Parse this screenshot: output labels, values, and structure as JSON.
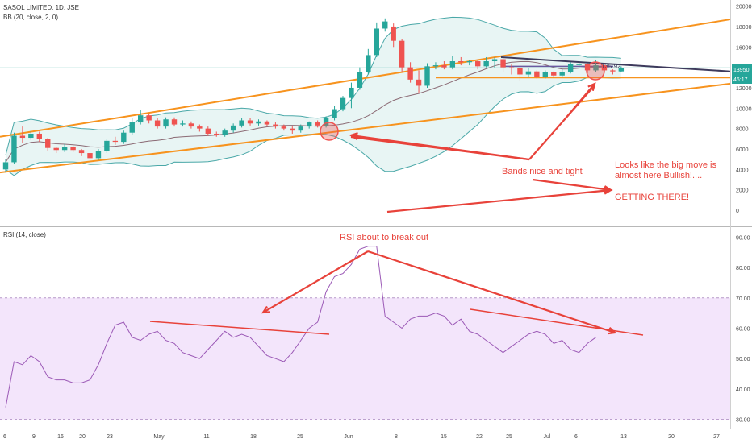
{
  "header": {
    "symbol_line": "SASOL LIMITED, 1D, JSE",
    "bb_line": "BB (20, close, 2, 0)",
    "rsi_line": "RSI (14, close)"
  },
  "price_labels": {
    "last_price": "13950",
    "countdown": "46:17",
    "line_value": "135.92"
  },
  "annotations": {
    "rsi_break": "RSI about to break out",
    "bands_tight": "Bands nice and tight",
    "bullish_1": "Looks like the big move is",
    "bullish_2": "almost here Bullish!....",
    "getting_there": "GETTING THERE!"
  },
  "colors": {
    "up": "#26a69a",
    "down": "#ef5350",
    "channel": "#f7931e",
    "bands": "#4aa8a8",
    "band_fill": "#e6f4f3",
    "ma": "#8b6a74",
    "rsi": "#9b59b6",
    "rsi_band": "#f3e5fb",
    "annotation": "#e8423a",
    "trend_dark": "#3d3a5c"
  },
  "chart_data": {
    "type": "candlestick",
    "price_axis": {
      "ticks": [
        0,
        2000,
        4000,
        6000,
        8000,
        10000,
        12000,
        14000,
        16000,
        18000,
        20000
      ],
      "range": [
        -1500,
        20600
      ]
    },
    "rsi_axis": {
      "ticks": [
        "30.00",
        "40.00",
        "50.00",
        "60.00",
        "70.00",
        "80.00",
        "90.00"
      ],
      "range": [
        27,
        93
      ],
      "band": [
        30,
        70
      ]
    },
    "x_axis": {
      "labels": [
        "6",
        "9",
        "16",
        "20",
        "23",
        "May",
        "11",
        "18",
        "25",
        "Jun",
        "8",
        "15",
        "22",
        "25",
        "Jul",
        "6",
        "13",
        "20",
        "27"
      ]
    },
    "candles": [
      {
        "o": 4000,
        "c": 4700,
        "h": 5000,
        "l": 3700
      },
      {
        "o": 4700,
        "c": 7300,
        "h": 7600,
        "l": 4500
      },
      {
        "o": 7300,
        "c": 7100,
        "h": 8200,
        "l": 6600
      },
      {
        "o": 7100,
        "c": 7500,
        "h": 7800,
        "l": 6900
      },
      {
        "o": 7500,
        "c": 7000,
        "h": 7700,
        "l": 6700
      },
      {
        "o": 7000,
        "c": 6100,
        "h": 7100,
        "l": 5800
      },
      {
        "o": 6100,
        "c": 5900,
        "h": 6200,
        "l": 5600
      },
      {
        "o": 5900,
        "c": 6200,
        "h": 6500,
        "l": 5700
      },
      {
        "o": 6200,
        "c": 5900,
        "h": 6300,
        "l": 5700
      },
      {
        "o": 5900,
        "c": 5600,
        "h": 6000,
        "l": 5300
      },
      {
        "o": 5600,
        "c": 5100,
        "h": 5700,
        "l": 4600
      },
      {
        "o": 5100,
        "c": 5800,
        "h": 6000,
        "l": 4900
      },
      {
        "o": 5800,
        "c": 6800,
        "h": 7000,
        "l": 5600
      },
      {
        "o": 6800,
        "c": 6700,
        "h": 7200,
        "l": 6400
      },
      {
        "o": 6700,
        "c": 7600,
        "h": 7800,
        "l": 6500
      },
      {
        "o": 7600,
        "c": 8600,
        "h": 9000,
        "l": 7400
      },
      {
        "o": 8600,
        "c": 9300,
        "h": 9800,
        "l": 8400
      },
      {
        "o": 9300,
        "c": 8800,
        "h": 9500,
        "l": 8500
      },
      {
        "o": 8800,
        "c": 8200,
        "h": 9000,
        "l": 8000
      },
      {
        "o": 8200,
        "c": 8900,
        "h": 9100,
        "l": 8000
      },
      {
        "o": 8900,
        "c": 8400,
        "h": 9100,
        "l": 8200
      },
      {
        "o": 8400,
        "c": 8500,
        "h": 8800,
        "l": 8200
      },
      {
        "o": 8500,
        "c": 8200,
        "h": 8700,
        "l": 8000
      },
      {
        "o": 8200,
        "c": 8000,
        "h": 8400,
        "l": 7700
      },
      {
        "o": 8000,
        "c": 7500,
        "h": 8200,
        "l": 7300
      },
      {
        "o": 7500,
        "c": 7400,
        "h": 7700,
        "l": 7200
      },
      {
        "o": 7400,
        "c": 7800,
        "h": 8000,
        "l": 7200
      },
      {
        "o": 7800,
        "c": 8300,
        "h": 8500,
        "l": 7600
      },
      {
        "o": 8300,
        "c": 8800,
        "h": 9000,
        "l": 8100
      },
      {
        "o": 8800,
        "c": 8500,
        "h": 9000,
        "l": 8300
      },
      {
        "o": 8500,
        "c": 8700,
        "h": 8900,
        "l": 8300
      },
      {
        "o": 8700,
        "c": 8400,
        "h": 8800,
        "l": 8200
      },
      {
        "o": 8400,
        "c": 8200,
        "h": 8600,
        "l": 8000
      },
      {
        "o": 8200,
        "c": 8000,
        "h": 8400,
        "l": 7800
      },
      {
        "o": 8000,
        "c": 7800,
        "h": 8200,
        "l": 7500
      },
      {
        "o": 7800,
        "c": 8200,
        "h": 8400,
        "l": 7600
      },
      {
        "o": 8200,
        "c": 8600,
        "h": 8700,
        "l": 8000
      },
      {
        "o": 8600,
        "c": 8300,
        "h": 8800,
        "l": 8100
      },
      {
        "o": 8300,
        "c": 9000,
        "h": 9200,
        "l": 8100
      },
      {
        "o": 9000,
        "c": 9900,
        "h": 10200,
        "l": 8800
      },
      {
        "o": 9900,
        "c": 11000,
        "h": 11200,
        "l": 9700
      },
      {
        "o": 11000,
        "c": 12000,
        "h": 12500,
        "l": 10000
      },
      {
        "o": 12000,
        "c": 13500,
        "h": 14000,
        "l": 11800
      },
      {
        "o": 13500,
        "c": 15200,
        "h": 15800,
        "l": 13300
      },
      {
        "o": 15200,
        "c": 17800,
        "h": 18400,
        "l": 15000
      },
      {
        "o": 17800,
        "c": 18500,
        "h": 18800,
        "l": 17500
      },
      {
        "o": 18000,
        "c": 16600,
        "h": 18300,
        "l": 16000
      },
      {
        "o": 16600,
        "c": 14000,
        "h": 16800,
        "l": 13500
      },
      {
        "o": 14000,
        "c": 12800,
        "h": 14500,
        "l": 12500
      },
      {
        "o": 12800,
        "c": 12200,
        "h": 13700,
        "l": 11500
      },
      {
        "o": 12200,
        "c": 14100,
        "h": 14400,
        "l": 12000
      },
      {
        "o": 14100,
        "c": 14200,
        "h": 14500,
        "l": 13800
      },
      {
        "o": 14200,
        "c": 14000,
        "h": 14600,
        "l": 13800
      },
      {
        "o": 14000,
        "c": 14600,
        "h": 15100,
        "l": 13800
      },
      {
        "o": 14600,
        "c": 14500,
        "h": 15000,
        "l": 14200
      },
      {
        "o": 14500,
        "c": 14600,
        "h": 14700,
        "l": 14200
      },
      {
        "o": 14600,
        "c": 14100,
        "h": 14800,
        "l": 13800
      },
      {
        "o": 14100,
        "c": 14600,
        "h": 15000,
        "l": 14000
      },
      {
        "o": 14600,
        "c": 14800,
        "h": 15000,
        "l": 13900
      },
      {
        "o": 14800,
        "c": 14000,
        "h": 14900,
        "l": 13500
      },
      {
        "o": 14000,
        "c": 13900,
        "h": 14300,
        "l": 13300
      },
      {
        "o": 13900,
        "c": 13300,
        "h": 14000,
        "l": 12700
      },
      {
        "o": 13300,
        "c": 13600,
        "h": 13900,
        "l": 13100
      },
      {
        "o": 13600,
        "c": 13100,
        "h": 13700,
        "l": 12900
      },
      {
        "o": 13100,
        "c": 13500,
        "h": 13700,
        "l": 12900
      },
      {
        "o": 13500,
        "c": 13200,
        "h": 13600,
        "l": 13000
      },
      {
        "o": 13200,
        "c": 13500,
        "h": 13900,
        "l": 13000
      },
      {
        "o": 13500,
        "c": 14300,
        "h": 14500,
        "l": 13400
      },
      {
        "o": 14300,
        "c": 14300,
        "h": 14500,
        "l": 14000
      },
      {
        "o": 14300,
        "c": 13700,
        "h": 14400,
        "l": 13400
      },
      {
        "o": 13700,
        "c": 14200,
        "h": 14700,
        "l": 13500
      },
      {
        "o": 14200,
        "c": 13700,
        "h": 14300,
        "l": 13500
      },
      {
        "o": 13700,
        "c": 13600,
        "h": 13800,
        "l": 13300
      },
      {
        "o": 13600,
        "c": 13950,
        "h": 14100,
        "l": 13500
      }
    ],
    "rsi": [
      34,
      49,
      48,
      51,
      49,
      44,
      43,
      43,
      42,
      42,
      43,
      48,
      55,
      61,
      62,
      57,
      56,
      58,
      59,
      56,
      55,
      52,
      51,
      50,
      53,
      56,
      59,
      57,
      58,
      57,
      54,
      51,
      50,
      49,
      52,
      56,
      60,
      62,
      72,
      77,
      78,
      81,
      86,
      87,
      87,
      64,
      62,
      60,
      63,
      64,
      64,
      65,
      64,
      61,
      63,
      59,
      58,
      56,
      54,
      52,
      54,
      56,
      58,
      59,
      58,
      55,
      56,
      53,
      52,
      55,
      57
    ]
  }
}
